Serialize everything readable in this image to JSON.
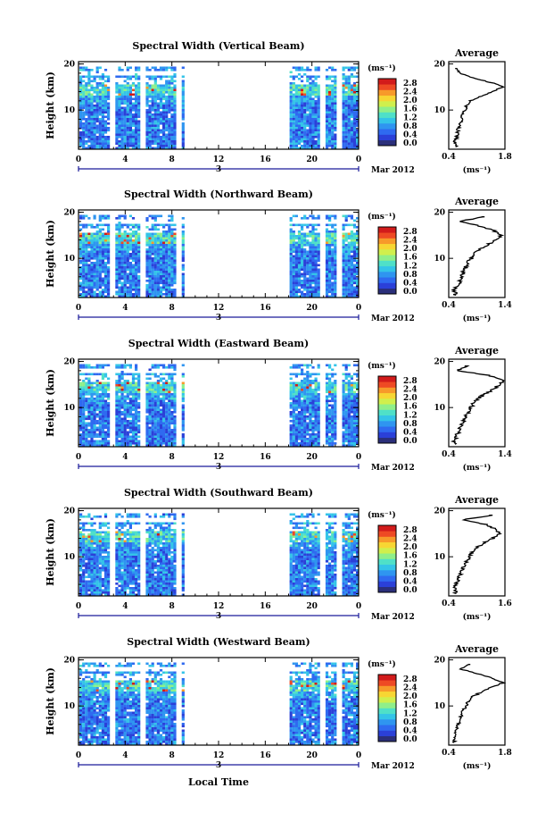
{
  "colors": {
    "scale": [
      "#2b2f7a",
      "#2b40d8",
      "#2f6af0",
      "#2f95f0",
      "#34c4e8",
      "#4fe0c8",
      "#8fef8a",
      "#d0ef4d",
      "#f7d633",
      "#f79a2a",
      "#ee4a24",
      "#d21b1b"
    ]
  },
  "figure": {
    "xlabel": "Local Time",
    "date_label": "Mar 2012",
    "day_label": "3"
  },
  "chart_data": [
    {
      "type": "heatmap",
      "title": "Spectral Width (Vertical Beam)",
      "ylabel": "Height (km)",
      "x_ticks": [
        "0",
        "4",
        "8",
        "12",
        "16",
        "20",
        "0"
      ],
      "xlim": [
        0,
        24
      ],
      "y_ticks": [
        "20",
        "10"
      ],
      "ylim": [
        1.5,
        20.5
      ],
      "data_gaps_hours": [
        [
          2.55,
          2.95
        ],
        [
          5.25,
          5.65
        ],
        [
          8.3,
          8.7
        ],
        [
          9.05,
          17.9
        ],
        [
          20.6,
          21.0
        ],
        [
          22.05,
          22.45
        ]
      ],
      "colorbar": {
        "unit": "(ms⁻¹)",
        "ticks": [
          "2.8",
          "2.4",
          "2.0",
          "1.6",
          "1.2",
          "0.8",
          "0.4",
          "0.0"
        ]
      },
      "profile": {
        "title": "Average",
        "x_ticks": [
          "0.4",
          "1.8"
        ],
        "xlim": [
          0.4,
          1.8
        ],
        "x_unit": "(ms⁻¹)",
        "y_ticks": [
          "20",
          "10"
        ],
        "height_km": [
          2,
          3,
          4,
          5,
          6,
          7,
          8,
          9,
          10,
          11,
          12,
          13,
          14,
          15,
          16,
          17,
          18,
          19
        ],
        "width_ms": [
          0.58,
          0.55,
          0.6,
          0.62,
          0.64,
          0.68,
          0.72,
          0.75,
          0.8,
          0.85,
          0.95,
          1.2,
          1.5,
          1.75,
          1.45,
          1.0,
          0.65,
          0.6
        ]
      }
    },
    {
      "type": "heatmap",
      "title": "Spectral Width (Northward Beam)",
      "ylabel": "Height (km)",
      "x_ticks": [
        "0",
        "4",
        "8",
        "12",
        "16",
        "20",
        "0"
      ],
      "xlim": [
        0,
        24
      ],
      "y_ticks": [
        "20",
        "10"
      ],
      "ylim": [
        1.5,
        20.5
      ],
      "data_gaps_hours": [
        [
          2.55,
          2.95
        ],
        [
          5.25,
          5.65
        ],
        [
          8.3,
          8.7
        ],
        [
          9.05,
          17.9
        ],
        [
          20.6,
          21.0
        ],
        [
          22.05,
          22.45
        ]
      ],
      "colorbar": {
        "unit": "(ms⁻¹)",
        "ticks": [
          "2.8",
          "2.4",
          "2.0",
          "1.6",
          "1.2",
          "0.8",
          "0.4",
          "0.0"
        ]
      },
      "profile": {
        "title": "Average",
        "x_ticks": [
          "0.4",
          "1.4"
        ],
        "xlim": [
          0.4,
          1.4
        ],
        "x_unit": "(ms⁻¹)",
        "y_ticks": [
          "20",
          "10"
        ],
        "height_km": [
          2,
          3,
          4,
          5,
          6,
          7,
          8,
          9,
          10,
          11,
          12,
          13,
          14,
          15,
          16,
          17,
          18,
          19
        ],
        "width_ms": [
          0.52,
          0.5,
          0.55,
          0.6,
          0.62,
          0.66,
          0.7,
          0.74,
          0.8,
          0.86,
          0.95,
          1.1,
          1.25,
          1.32,
          1.2,
          0.95,
          0.6,
          1.0
        ]
      }
    },
    {
      "type": "heatmap",
      "title": "Spectral Width (Eastward Beam)",
      "ylabel": "Height (km)",
      "x_ticks": [
        "0",
        "4",
        "8",
        "12",
        "16",
        "20",
        "0"
      ],
      "xlim": [
        0,
        24
      ],
      "y_ticks": [
        "20",
        "10"
      ],
      "ylim": [
        1.5,
        20.5
      ],
      "data_gaps_hours": [
        [
          2.55,
          2.95
        ],
        [
          5.25,
          5.65
        ],
        [
          8.3,
          8.7
        ],
        [
          9.05,
          17.9
        ],
        [
          20.6,
          21.0
        ],
        [
          22.05,
          22.45
        ]
      ],
      "colorbar": {
        "unit": "(ms⁻¹)",
        "ticks": [
          "2.8",
          "2.4",
          "2.0",
          "1.6",
          "1.2",
          "0.8",
          "0.4",
          "0.0"
        ]
      },
      "profile": {
        "title": "Average",
        "x_ticks": [
          "0.4",
          "1.4"
        ],
        "xlim": [
          0.4,
          1.4
        ],
        "x_unit": "(ms⁻¹)",
        "y_ticks": [
          "20",
          "10"
        ],
        "height_km": [
          2,
          3,
          4,
          5,
          6,
          7,
          8,
          9,
          10,
          11,
          12,
          13,
          14,
          15,
          16,
          17,
          18,
          19
        ],
        "width_ms": [
          0.5,
          0.5,
          0.55,
          0.58,
          0.62,
          0.66,
          0.7,
          0.75,
          0.8,
          0.85,
          0.92,
          1.05,
          1.2,
          1.3,
          1.38,
          1.1,
          0.55,
          0.7
        ]
      }
    },
    {
      "type": "heatmap",
      "title": "Spectral Width (Southward Beam)",
      "ylabel": "Height (km)",
      "x_ticks": [
        "0",
        "4",
        "8",
        "12",
        "16",
        "20",
        "0"
      ],
      "xlim": [
        0,
        24
      ],
      "y_ticks": [
        "20",
        "10"
      ],
      "ylim": [
        1.5,
        20.5
      ],
      "data_gaps_hours": [
        [
          2.55,
          2.95
        ],
        [
          5.25,
          5.65
        ],
        [
          8.3,
          8.7
        ],
        [
          9.05,
          17.9
        ],
        [
          20.6,
          21.0
        ],
        [
          22.05,
          22.45
        ]
      ],
      "colorbar": {
        "unit": "(ms⁻¹)",
        "ticks": [
          "2.8",
          "2.4",
          "2.0",
          "1.6",
          "1.2",
          "0.8",
          "0.4",
          "0.0"
        ]
      },
      "profile": {
        "title": "Average",
        "x_ticks": [
          "0.4",
          "1.6"
        ],
        "xlim": [
          0.4,
          1.6
        ],
        "x_unit": "(ms⁻¹)",
        "y_ticks": [
          "20",
          "10"
        ],
        "height_km": [
          2,
          3,
          4,
          5,
          6,
          7,
          8,
          9,
          10,
          11,
          12,
          13,
          14,
          15,
          16,
          17,
          18,
          19
        ],
        "width_ms": [
          0.55,
          0.52,
          0.56,
          0.6,
          0.64,
          0.68,
          0.72,
          0.78,
          0.85,
          0.9,
          1.0,
          1.15,
          1.35,
          1.5,
          1.4,
          1.2,
          0.7,
          1.3
        ]
      }
    },
    {
      "type": "heatmap",
      "title": "Spectral Width (Westward Beam)",
      "ylabel": "Height (km)",
      "x_ticks": [
        "0",
        "4",
        "8",
        "12",
        "16",
        "20",
        "0"
      ],
      "xlim": [
        0,
        24
      ],
      "y_ticks": [
        "20",
        "10"
      ],
      "ylim": [
        1.5,
        20.5
      ],
      "data_gaps_hours": [
        [
          2.55,
          2.95
        ],
        [
          5.25,
          5.65
        ],
        [
          8.3,
          8.7
        ],
        [
          9.05,
          17.9
        ],
        [
          20.6,
          21.0
        ],
        [
          22.05,
          22.45
        ]
      ],
      "colorbar": {
        "unit": "(ms⁻¹)",
        "ticks": [
          "2.8",
          "2.4",
          "2.0",
          "1.6",
          "1.2",
          "0.8",
          "0.4",
          "0.0"
        ]
      },
      "profile": {
        "title": "Average",
        "x_ticks": [
          "0.4",
          "1.8"
        ],
        "xlim": [
          0.4,
          1.8
        ],
        "x_unit": "(ms⁻¹)",
        "y_ticks": [
          "20",
          "10"
        ],
        "height_km": [
          2,
          3,
          4,
          5,
          6,
          7,
          8,
          9,
          10,
          11,
          12,
          13,
          14,
          15,
          16,
          17,
          18,
          19
        ],
        "width_ms": [
          0.55,
          0.52,
          0.58,
          0.6,
          0.64,
          0.68,
          0.72,
          0.76,
          0.82,
          0.9,
          1.0,
          1.2,
          1.45,
          1.75,
          1.5,
          1.1,
          0.7,
          0.9
        ]
      }
    }
  ]
}
